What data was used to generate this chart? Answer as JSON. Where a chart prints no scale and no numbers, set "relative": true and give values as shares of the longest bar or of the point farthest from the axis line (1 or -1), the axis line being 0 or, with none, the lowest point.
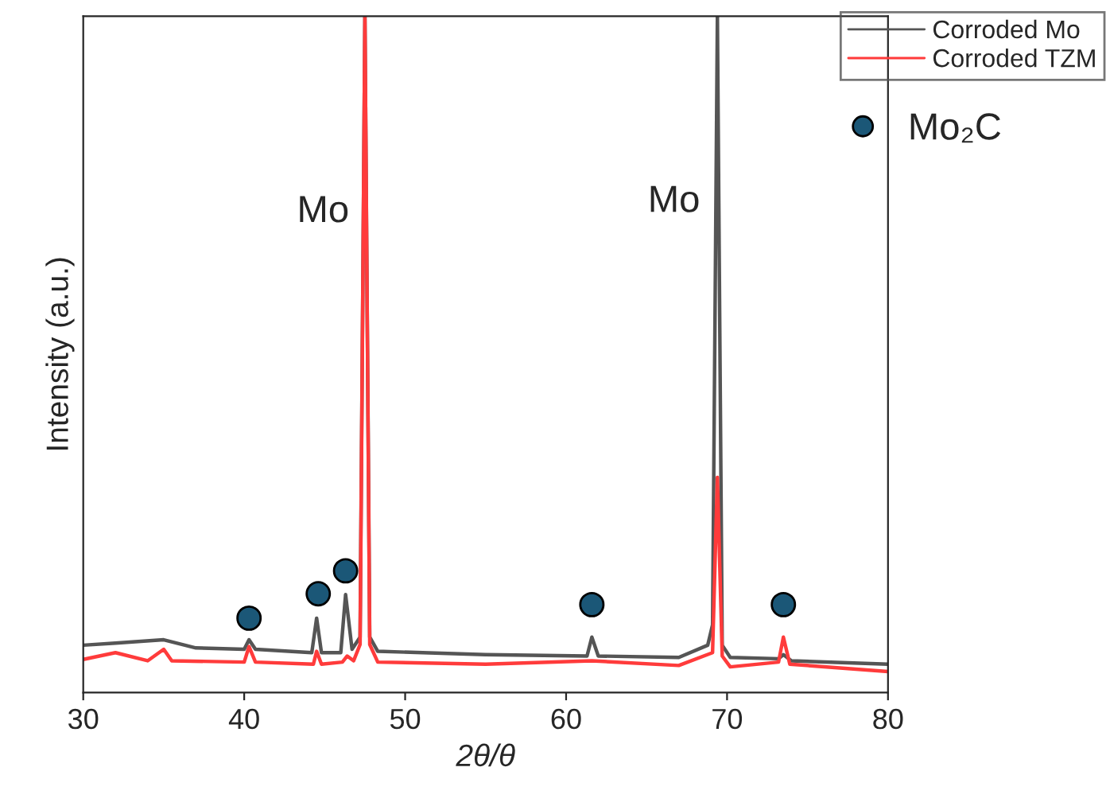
{
  "chart_data": {
    "type": "line",
    "relative": true,
    "xlabel": "2θ/θ",
    "ylabel": "Intensity (a.u.)",
    "xlim": [
      30,
      80
    ],
    "xticks": [
      30,
      40,
      50,
      60,
      70,
      80
    ],
    "legend": "top right",
    "grid": false,
    "annotations": [
      "Mo",
      "Mo"
    ],
    "series": [
      {
        "name": "Corroded Mo",
        "color": "#555555",
        "x": [
          30,
          32,
          35,
          37,
          40,
          40.3,
          40.7,
          44.2,
          44.5,
          44.8,
          46.0,
          46.3,
          46.7,
          47.2,
          47.5,
          47.8,
          48.3,
          55,
          61.3,
          61.6,
          62.0,
          67,
          68.8,
          69.1,
          69.4,
          69.7,
          70.2,
          73.2,
          73.5,
          74,
          80
        ],
        "values": [
          0.07,
          0.073,
          0.078,
          0.066,
          0.064,
          0.078,
          0.064,
          0.059,
          0.11,
          0.059,
          0.059,
          0.145,
          0.064,
          0.082,
          1,
          0.082,
          0.061,
          0.056,
          0.054,
          0.082,
          0.054,
          0.052,
          0.07,
          0.1,
          1,
          0.07,
          0.052,
          0.05,
          0.056,
          0.047,
          0.042
        ]
      },
      {
        "name": "Corroded TZM",
        "color": "#ff3b3b",
        "x": [
          30,
          32,
          34,
          35,
          35.5,
          40,
          40.3,
          40.7,
          44.3,
          44.5,
          44.8,
          46.1,
          46.4,
          46.8,
          47.2,
          47.5,
          47.8,
          48.3,
          55,
          61.6,
          67,
          69.1,
          69.4,
          69.7,
          70.2,
          73.2,
          73.5,
          73.9,
          80
        ],
        "values": [
          0.049,
          0.059,
          0.047,
          0.064,
          0.047,
          0.045,
          0.068,
          0.045,
          0.042,
          0.061,
          0.042,
          0.045,
          0.054,
          0.047,
          0.071,
          1,
          0.071,
          0.045,
          0.042,
          0.047,
          0.04,
          0.059,
          0.318,
          0.054,
          0.038,
          0.045,
          0.082,
          0.042,
          0.031
        ]
      },
      {
        "name": "Mo₂C",
        "type": "scatter",
        "marker": "circle",
        "color": "#1b5777",
        "x": [
          40.3,
          44.6,
          46.3,
          61.6,
          73.5
        ],
        "values": [
          0.11,
          0.146,
          0.18,
          0.13,
          0.13
        ]
      }
    ]
  }
}
